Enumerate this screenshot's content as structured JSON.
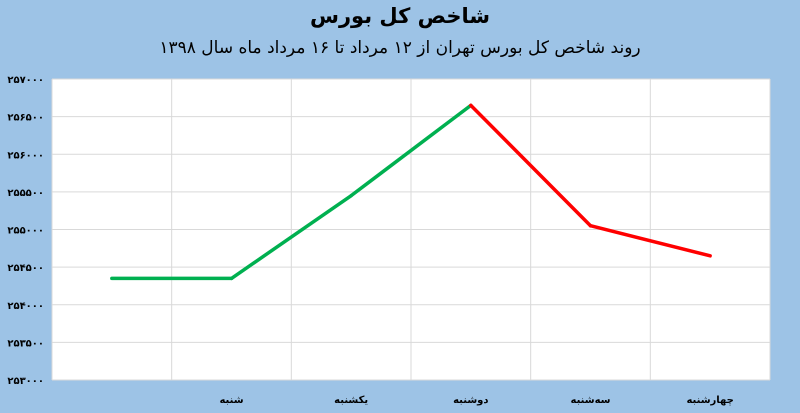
{
  "chart_data": {
    "type": "line",
    "title": "شاخص کل بورس",
    "subtitle": "روند شاخص کل بورس تهران از ۱۲ مرداد تا ۱۶ مرداد ماه سال ۱۳۹۸",
    "categories": [
      "",
      "شنبه",
      "یکشنبه",
      "دوشنبه",
      "سه‌شنبه",
      "چهارشنبه"
    ],
    "series": [
      {
        "values": [
          254350,
          254350,
          255450,
          256650,
          255050,
          254650
        ]
      }
    ],
    "ylim": [
      253000,
      257000
    ],
    "yticks": [
      253000,
      253500,
      254000,
      254500,
      255000,
      255500,
      256000,
      256500,
      257000
    ],
    "ytick_labels": [
      "۲۵۳۰۰۰",
      "۲۵۳۵۰۰",
      "۲۵۴۰۰۰",
      "۲۵۴۵۰۰",
      "۲۵۵۰۰۰",
      "۲۵۵۵۰۰",
      "۲۵۶۰۰۰",
      "۲۵۶۵۰۰",
      "۲۵۷۰۰۰"
    ],
    "colors": {
      "up": "#00b050",
      "down": "#ff0000",
      "plot_bg": "#ffffff",
      "grid": "#d9d9d9"
    },
    "grid": true,
    "legend": "none"
  }
}
